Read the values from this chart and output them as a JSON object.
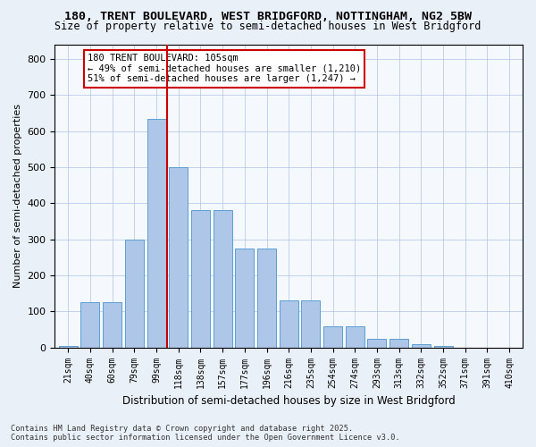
{
  "title1": "180, TRENT BOULEVARD, WEST BRIDGFORD, NOTTINGHAM, NG2 5BW",
  "title2": "Size of property relative to semi-detached houses in West Bridgford",
  "xlabel": "Distribution of semi-detached houses by size in West Bridgford",
  "ylabel": "Number of semi-detached properties",
  "categories": [
    "21sqm",
    "40sqm",
    "60sqm",
    "79sqm",
    "99sqm",
    "118sqm",
    "138sqm",
    "157sqm",
    "177sqm",
    "196sqm",
    "216sqm",
    "235sqm",
    "254sqm",
    "274sqm",
    "293sqm",
    "313sqm",
    "332sqm",
    "352sqm",
    "371sqm",
    "391sqm",
    "410sqm"
  ],
  "values": [
    5,
    125,
    125,
    300,
    635,
    500,
    380,
    380,
    275,
    275,
    130,
    130,
    60,
    60,
    25,
    25,
    10,
    5,
    0,
    0,
    0
  ],
  "bar_color": "#aec6e8",
  "bar_edge_color": "#5a9fd4",
  "vline_x": 4.5,
  "vline_color": "#cc0000",
  "annotation_title": "180 TRENT BOULEVARD: 105sqm",
  "annotation_line1": "← 49% of semi-detached houses are smaller (1,210)",
  "annotation_line2": "51% of semi-detached houses are larger (1,247) →",
  "annotation_box_color": "#ffffff",
  "annotation_box_edge": "#cc0000",
  "ylim": [
    0,
    840
  ],
  "yticks": [
    0,
    100,
    200,
    300,
    400,
    500,
    600,
    700,
    800
  ],
  "footer1": "Contains HM Land Registry data © Crown copyright and database right 2025.",
  "footer2": "Contains public sector information licensed under the Open Government Licence v3.0.",
  "bg_color": "#eaf0f8",
  "plot_bg_color": "#f5f8fd"
}
